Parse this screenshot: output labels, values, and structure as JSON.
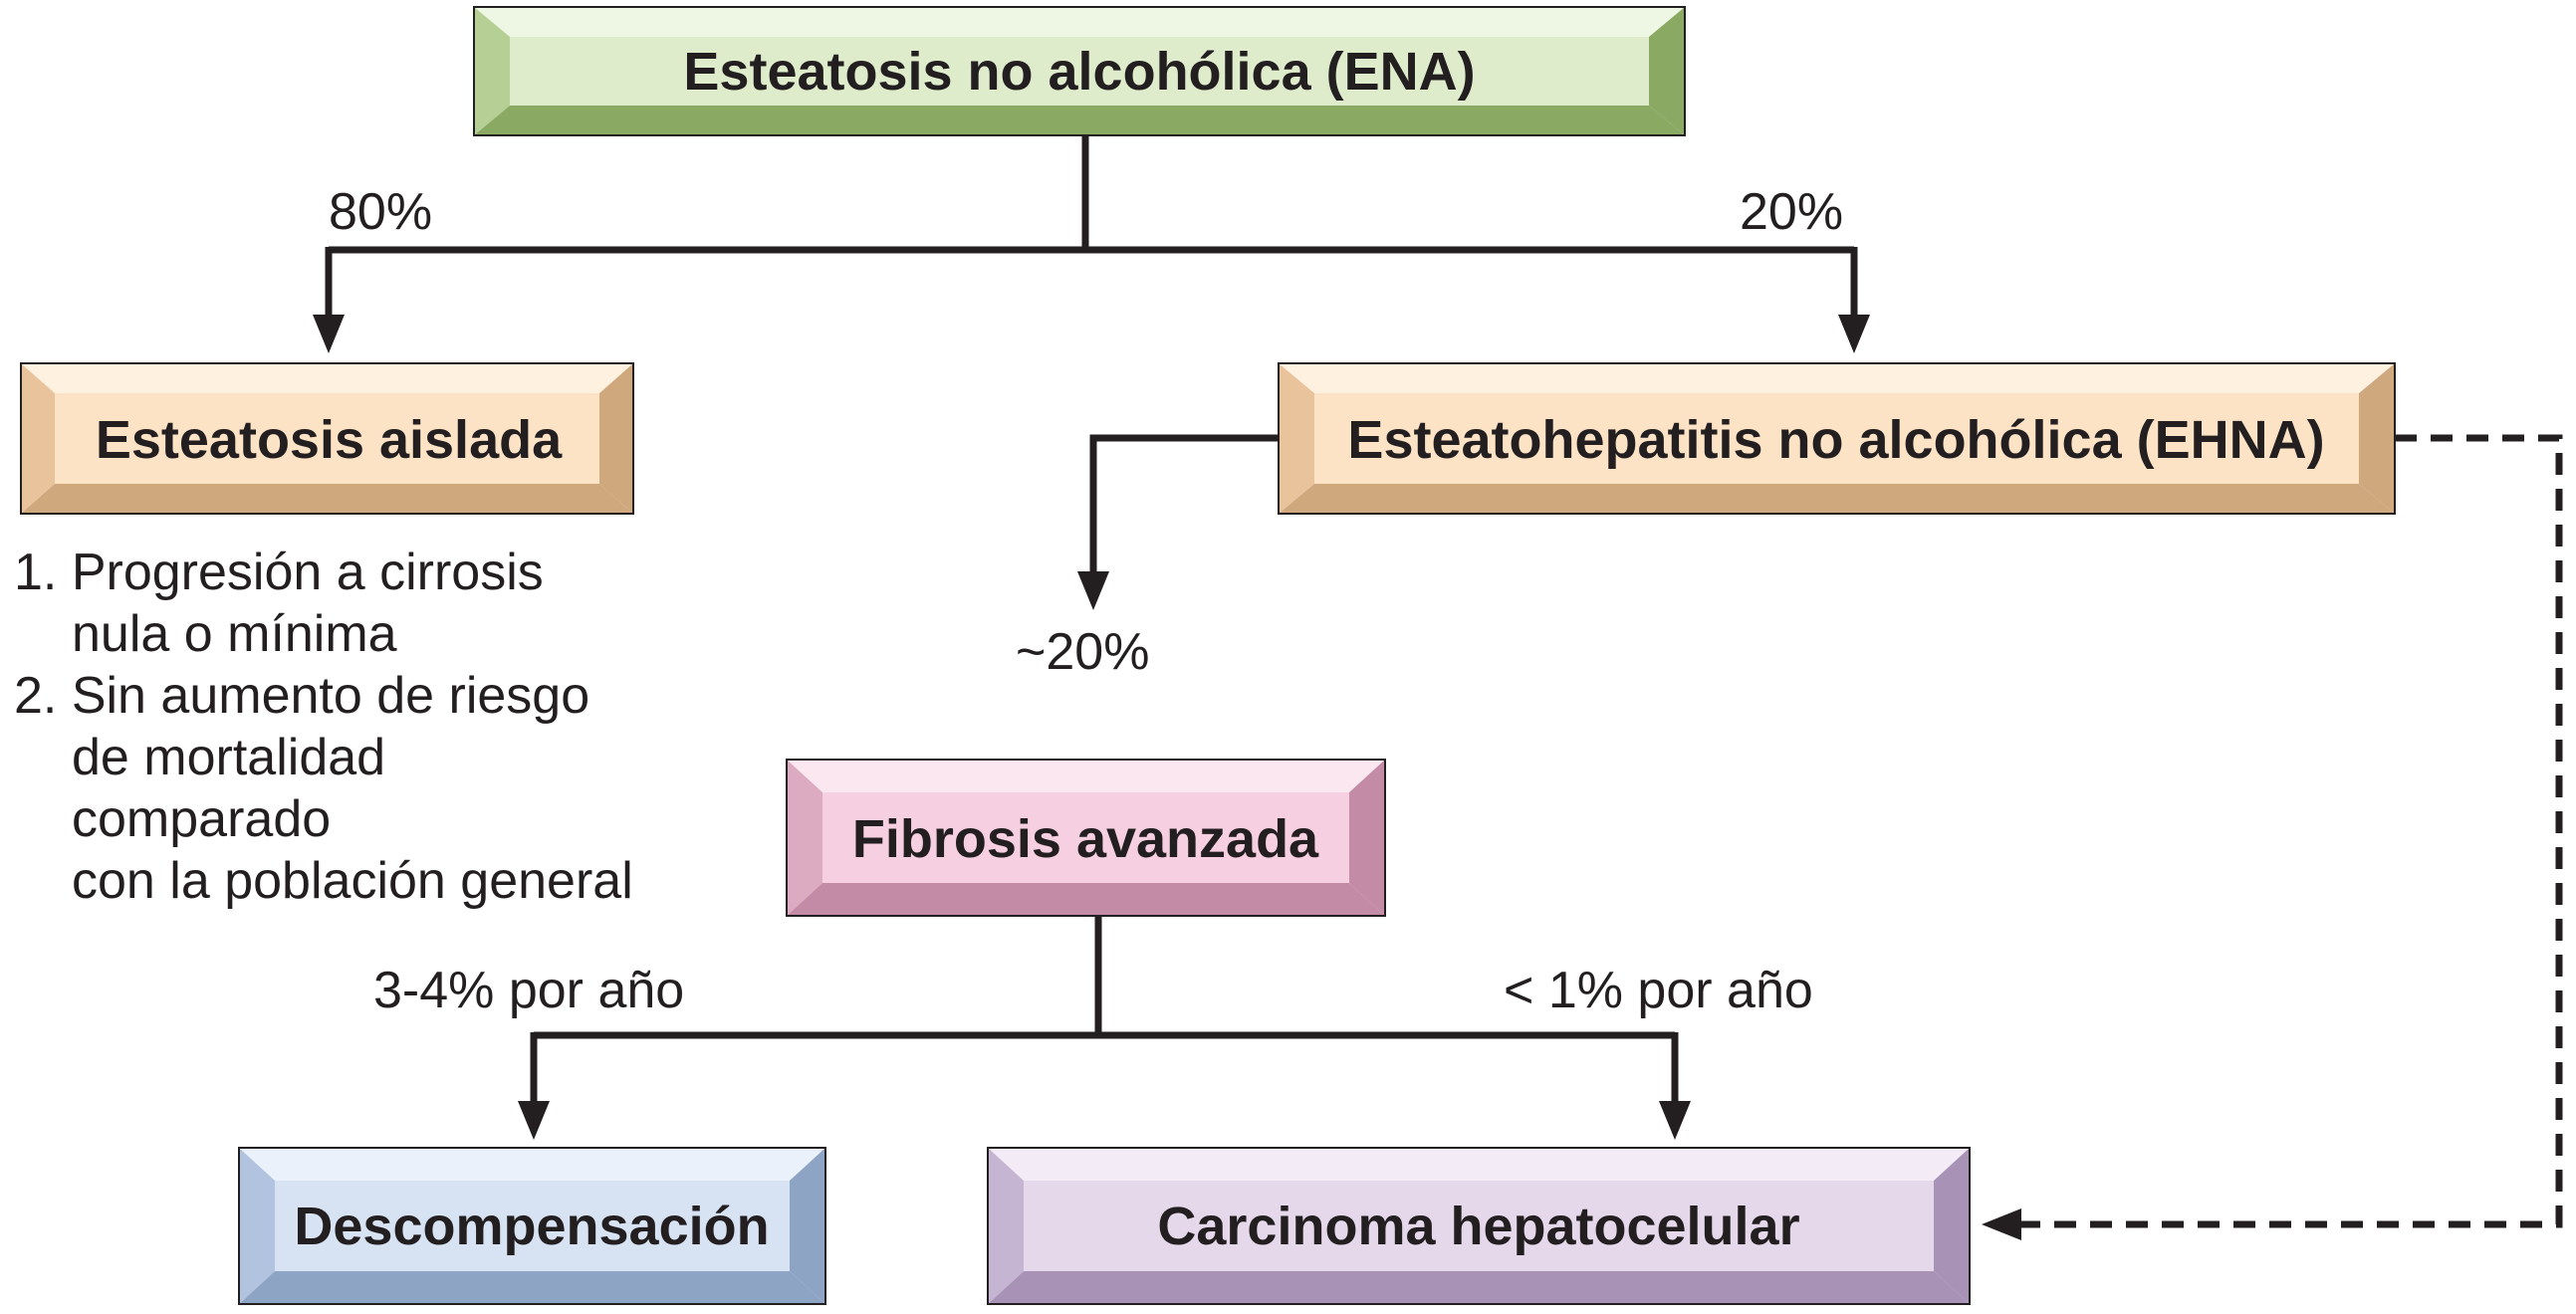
{
  "nodes": {
    "ena": {
      "label": "Esteatosis no alcohólica (ENA)"
    },
    "aislada": {
      "label": "Esteatosis aislada"
    },
    "ehna": {
      "label": "Esteatohepatitis no alcohólica (EHNA)"
    },
    "fibrosis": {
      "label": "Fibrosis avanzada"
    },
    "descompensacion": {
      "label": "Descompensación"
    },
    "carcinoma": {
      "label": "Carcinoma hepatocelular"
    }
  },
  "edges": {
    "ena_to_aislada": "80%",
    "ena_to_ehna": "20%",
    "ehna_to_fibrosis": "~20%",
    "fibrosis_to_descompensacion": "3-4% por año",
    "fibrosis_to_carcinoma": "< 1% por año"
  },
  "notes": {
    "line1": "1. Progresión a cirrosis",
    "line2": "nula o mínima",
    "line3": "2. Sin aumento de riesgo",
    "line4": "de mortalidad",
    "line5": "comparado",
    "line6": "con la población general"
  },
  "colors": {
    "green": {
      "face": "#deeccb",
      "light": "#eef6e4",
      "dark": "#8aaa64",
      "mid": "#b6cf95"
    },
    "orange": {
      "face": "#fde3c6",
      "light": "#fff1e0",
      "dark": "#d0a87e",
      "mid": "#e8c39b"
    },
    "pink": {
      "face": "#f6cfe0",
      "light": "#fbe7f0",
      "dark": "#c48ba6",
      "mid": "#dcaac1"
    },
    "blue": {
      "face": "#d7e2f3",
      "light": "#ebf1fa",
      "dark": "#8ea4c5",
      "mid": "#b1c3de"
    },
    "purple": {
      "face": "#e5d8eb",
      "light": "#f3ecf6",
      "dark": "#a893b7",
      "mid": "#c6b4d3"
    },
    "line": "#231f20"
  }
}
